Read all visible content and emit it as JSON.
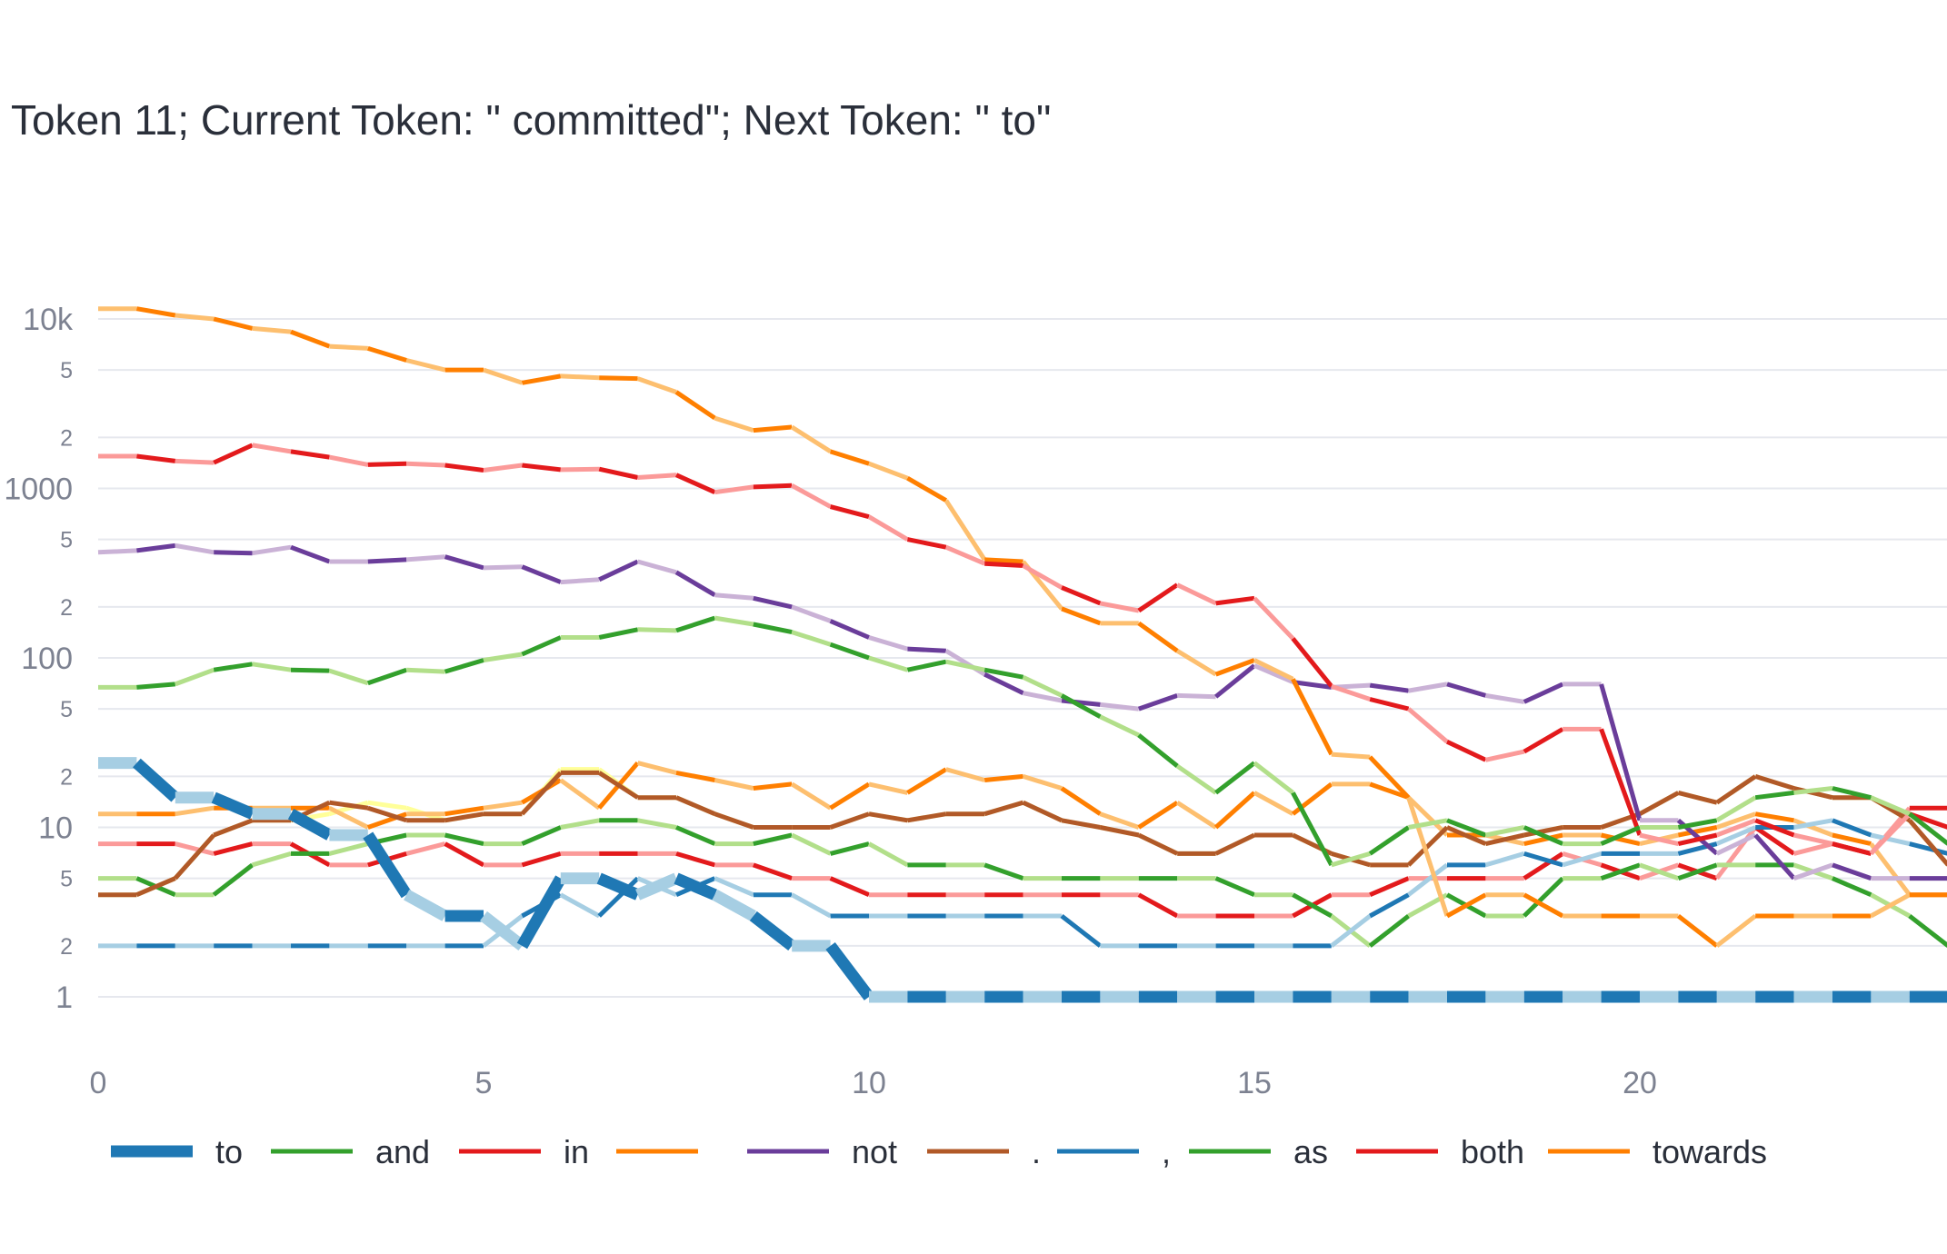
{
  "chart_data": {
    "type": "line",
    "title": "Token 11; Current Token: \" committed\"; Next Token: \" to\"",
    "xlabel": "",
    "ylabel": "",
    "yscale": "log",
    "ylim": [
      0.55,
      12000
    ],
    "xlim": [
      0,
      24
    ],
    "x_ticks": [
      "0",
      "5",
      "10",
      "15",
      "20"
    ],
    "y_ticks_major": [
      "1",
      "10",
      "100",
      "1000",
      "10k"
    ],
    "y_ticks_minor": [
      "2",
      "5"
    ],
    "grid": true,
    "legend_position": "bottom",
    "x": [
      0,
      0.5,
      1,
      1.5,
      2,
      2.5,
      3,
      3.5,
      4,
      4.5,
      5,
      5.5,
      6,
      6.5,
      7,
      7.5,
      8,
      8.5,
      9,
      9.5,
      10,
      10.5,
      11,
      11.5,
      12,
      12.5,
      13,
      13.5,
      14,
      14.5,
      15,
      15.5,
      16,
      16.5,
      17,
      17.5,
      18,
      18.5,
      19,
      19.5,
      20,
      20.5,
      21,
      21.5,
      22,
      22.5,
      23,
      23.5,
      24
    ],
    "series": [
      {
        "name": "to",
        "color_dark": "#1f78b4",
        "color_light": "#a6cee3",
        "bold": true,
        "values": [
          24,
          24,
          15,
          15,
          12,
          12,
          9,
          9,
          4,
          3,
          3,
          2,
          5,
          5,
          4,
          5,
          4,
          3,
          2,
          2,
          1,
          1,
          1,
          1,
          1,
          1,
          1,
          1,
          1,
          1,
          1,
          1,
          1,
          1,
          1,
          1,
          1,
          1,
          1,
          1,
          1,
          1,
          1,
          1,
          1,
          1,
          1,
          1,
          1
        ]
      },
      {
        "name": "and",
        "color_dark": "#33a02c",
        "color_light": "#b2df8a",
        "values": [
          67,
          67,
          70,
          85,
          92,
          85,
          84,
          71,
          85,
          83,
          97,
          105,
          132,
          132,
          147,
          145,
          172,
          158,
          142,
          120,
          100,
          85,
          95,
          85,
          77,
          60,
          45,
          35,
          23,
          16,
          24,
          16,
          6,
          7,
          10,
          11,
          9,
          10,
          8,
          8,
          10,
          10,
          11,
          15,
          16,
          17,
          15,
          12,
          8
        ]
      },
      {
        "name": "in",
        "color_dark": "#e31a1c",
        "color_light": "#fb9a99",
        "values": [
          1550,
          1550,
          1450,
          1420,
          1800,
          1650,
          1530,
          1380,
          1400,
          1370,
          1280,
          1370,
          1290,
          1300,
          1160,
          1200,
          950,
          1020,
          1040,
          780,
          680,
          500,
          450,
          360,
          350,
          260,
          210,
          190,
          270,
          210,
          225,
          130,
          68,
          57,
          50,
          32,
          25,
          28,
          38,
          38,
          9,
          8,
          9,
          11,
          9,
          8,
          7,
          12,
          10
        ]
      },
      {
        "name": "",
        "color_dark": "#ff7f00",
        "color_light": "#fdbf6f",
        "values": [
          11500,
          11500,
          10500,
          10000,
          8800,
          8400,
          6900,
          6700,
          5700,
          5000,
          5000,
          4200,
          4600,
          4500,
          4450,
          3700,
          2600,
          2200,
          2300,
          1650,
          1400,
          1150,
          850,
          380,
          370,
          195,
          160,
          160,
          110,
          80,
          97,
          75,
          27,
          26,
          15,
          3,
          4,
          4,
          3,
          3,
          3,
          3,
          2,
          3,
          3,
          3,
          3,
          4,
          4
        ]
      },
      {
        "name": "not",
        "color_dark": "#6a3d9a",
        "color_light": "#cab2d6",
        "values": [
          420,
          430,
          460,
          420,
          415,
          450,
          370,
          370,
          380,
          395,
          340,
          345,
          280,
          290,
          370,
          320,
          235,
          225,
          200,
          165,
          132,
          113,
          110,
          80,
          62,
          56,
          53,
          50,
          60,
          59,
          90,
          72,
          67,
          69,
          64,
          70,
          60,
          55,
          70,
          70,
          11,
          11,
          7,
          9,
          5,
          6,
          5,
          5,
          5
        ]
      },
      {
        "name": ".",
        "color_dark": "#b15928",
        "color_light": "#b15928",
        "values": [
          4,
          4,
          5,
          9,
          11,
          11,
          14,
          13,
          11,
          11,
          12,
          12,
          21,
          21,
          15,
          15,
          12,
          10,
          10,
          10,
          12,
          11,
          12,
          12,
          14,
          11,
          10,
          9,
          7,
          7,
          9,
          9,
          7,
          6,
          6,
          10,
          8,
          9,
          10,
          10,
          12,
          16,
          14,
          20,
          17,
          15,
          15,
          11,
          6
        ]
      },
      {
        "name": ",",
        "color_dark": "#1f78b4",
        "color_light": "#a6cee3",
        "values": [
          2,
          2,
          2,
          2,
          2,
          2,
          2,
          2,
          2,
          2,
          2,
          3,
          4,
          3,
          5,
          4,
          5,
          4,
          4,
          3,
          3,
          3,
          3,
          3,
          3,
          3,
          2,
          2,
          2,
          2,
          2,
          2,
          2,
          3,
          4,
          6,
          6,
          7,
          6,
          7,
          7,
          7,
          8,
          10,
          10,
          11,
          9,
          8,
          7
        ]
      },
      {
        "name": "as",
        "color_dark": "#33a02c",
        "color_light": "#b2df8a",
        "values": [
          5,
          5,
          4,
          4,
          6,
          7,
          7,
          8,
          9,
          9,
          8,
          8,
          10,
          11,
          11,
          10,
          8,
          8,
          9,
          7,
          8,
          6,
          6,
          6,
          5,
          5,
          5,
          5,
          5,
          5,
          4,
          4,
          3,
          2,
          3,
          4,
          3,
          3,
          5,
          5,
          6,
          5,
          6,
          6,
          6,
          5,
          4,
          3,
          2
        ]
      },
      {
        "name": "both",
        "color_dark": "#e31a1c",
        "color_light": "#fb9a99",
        "values": [
          8,
          8,
          8,
          7,
          8,
          8,
          6,
          6,
          7,
          8,
          6,
          6,
          7,
          7,
          7,
          7,
          6,
          6,
          5,
          5,
          4,
          4,
          4,
          4,
          4,
          4,
          4,
          4,
          3,
          3,
          3,
          3,
          4,
          4,
          5,
          5,
          5,
          5,
          7,
          6,
          5,
          6,
          5,
          10,
          7,
          8,
          7,
          13,
          13
        ]
      },
      {
        "name": "towards",
        "color_dark": "#ff7f00",
        "color_light": "#fdbf6f",
        "values": [
          12,
          12,
          12,
          13,
          13,
          13,
          13,
          10,
          12,
          12,
          13,
          14,
          19,
          13,
          24,
          21,
          19,
          17,
          18,
          13,
          18,
          16,
          22,
          19,
          20,
          17,
          12,
          10,
          14,
          10,
          16,
          12,
          18,
          18,
          15,
          9,
          9,
          8,
          9,
          9,
          8,
          9,
          10,
          12,
          11,
          9,
          8,
          4,
          4
        ]
      },
      {
        "name": "",
        "color_dark": "#ffff99",
        "color_light": "#ffff99",
        "values": [
          4,
          4,
          5,
          9,
          11,
          11,
          12,
          14,
          13,
          11,
          12,
          12,
          22,
          22,
          15,
          15,
          12,
          10,
          10,
          10,
          12,
          11,
          12,
          12,
          14,
          11,
          10,
          9,
          7,
          7,
          9,
          9,
          7,
          6,
          6,
          10,
          8,
          9,
          10,
          10,
          12,
          16,
          14,
          20,
          17,
          15,
          15,
          11,
          6
        ]
      }
    ]
  }
}
